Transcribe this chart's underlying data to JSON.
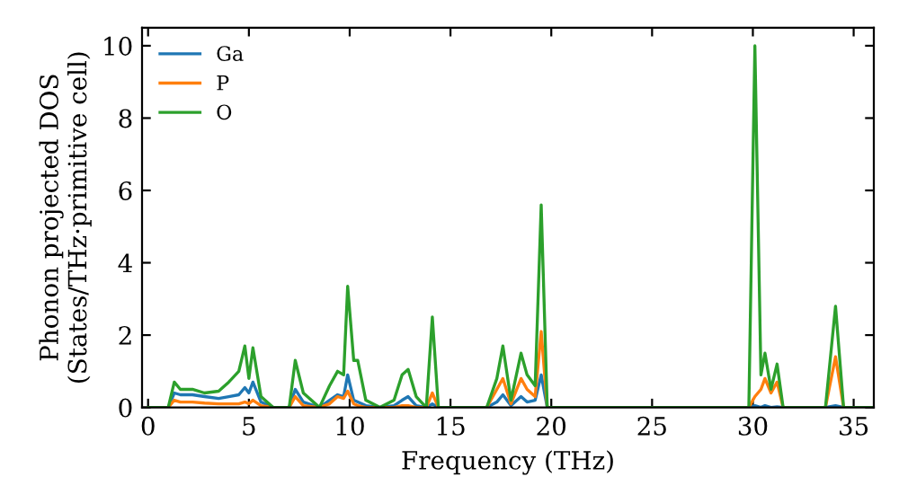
{
  "chart_data": {
    "type": "line",
    "xlabel": "Frequency (THz)",
    "ylabel": "Phonon projected DOS\n(States/THz·primitive cell)",
    "x": [
      0,
      1.0,
      1.3,
      1.6,
      2.2,
      2.8,
      3.5,
      4.0,
      4.5,
      4.8,
      5.0,
      5.2,
      5.6,
      6.2,
      7.0,
      7.3,
      7.7,
      8.5,
      9.0,
      9.4,
      9.7,
      9.9,
      10.2,
      10.4,
      10.8,
      11.5,
      12.2,
      12.6,
      12.9,
      13.3,
      13.8,
      14.1,
      14.4,
      16.8,
      17.3,
      17.6,
      18.0,
      18.5,
      18.8,
      19.2,
      19.5,
      19.8,
      29.8,
      30.1,
      30.4,
      30.6,
      30.9,
      31.2,
      31.5,
      33.6,
      34.1,
      34.5,
      36
    ],
    "series": [
      {
        "name": "Ga",
        "color": "#1f77b4",
        "values": [
          0,
          0,
          0.4,
          0.35,
          0.35,
          0.3,
          0.25,
          0.3,
          0.35,
          0.55,
          0.4,
          0.7,
          0.15,
          0,
          0,
          0.5,
          0.15,
          0,
          0.2,
          0.35,
          0.3,
          0.9,
          0.2,
          0.15,
          0.05,
          0,
          0.05,
          0.2,
          0.3,
          0.05,
          0,
          0.1,
          0,
          0,
          0.15,
          0.35,
          0.05,
          0.3,
          0.15,
          0.2,
          0.9,
          0,
          0,
          0.05,
          0,
          0.05,
          0,
          0.02,
          0,
          0,
          0.05,
          0,
          0
        ]
      },
      {
        "name": "P",
        "color": "#ff7f0e",
        "values": [
          0,
          0,
          0.2,
          0.15,
          0.15,
          0.12,
          0.1,
          0.1,
          0.1,
          0.15,
          0.1,
          0.2,
          0.05,
          0,
          0,
          0.3,
          0.05,
          0,
          0.1,
          0.3,
          0.25,
          0.45,
          0.1,
          0.05,
          0,
          0,
          0,
          0.05,
          0.05,
          0,
          0,
          0.4,
          0,
          0,
          0.5,
          0.8,
          0.1,
          0.8,
          0.5,
          0.3,
          2.1,
          0,
          0,
          0.3,
          0.5,
          0.8,
          0.4,
          0.7,
          0,
          0,
          1.4,
          0,
          0
        ]
      },
      {
        "name": "O",
        "color": "#2ca02c",
        "values": [
          0,
          0,
          0.7,
          0.5,
          0.5,
          0.4,
          0.45,
          0.7,
          1.0,
          1.7,
          0.8,
          1.65,
          0.3,
          0,
          0,
          1.3,
          0.4,
          0,
          0.6,
          1.0,
          0.9,
          3.35,
          1.3,
          1.3,
          0.2,
          0,
          0.2,
          0.9,
          1.05,
          0.3,
          0,
          2.5,
          0,
          0,
          0.8,
          1.7,
          0.2,
          1.5,
          0.9,
          0.6,
          5.6,
          0,
          0,
          10.0,
          0.9,
          1.5,
          0.5,
          1.2,
          0,
          0,
          2.8,
          0,
          0
        ]
      }
    ],
    "xlim": [
      -0.3,
      36
    ],
    "ylim": [
      0,
      10.5
    ],
    "xticks": [
      0,
      5,
      10,
      15,
      20,
      25,
      30,
      35
    ],
    "yticks": [
      0,
      2,
      4,
      6,
      8,
      10
    ],
    "legend": "top left",
    "grid": false,
    "marker": "none",
    "line_style": "solid"
  }
}
